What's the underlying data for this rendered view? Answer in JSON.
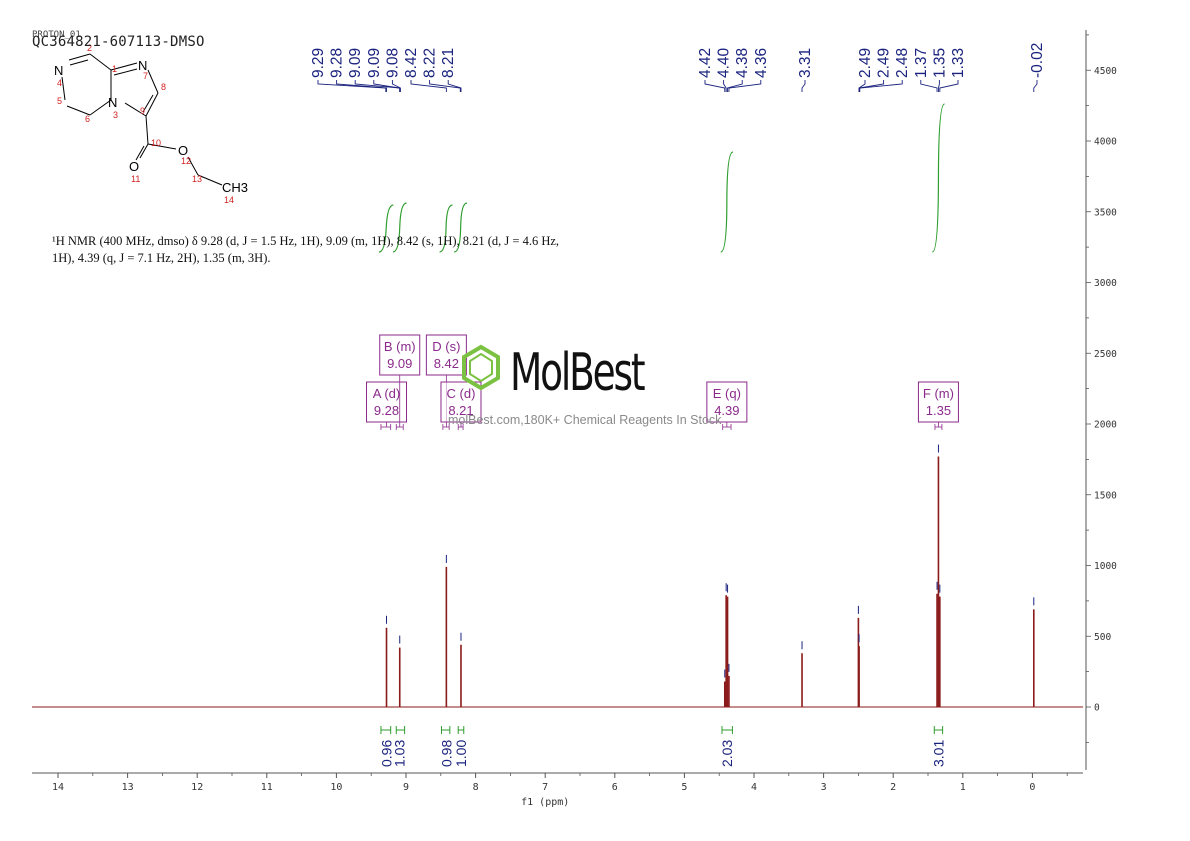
{
  "header": {
    "sample_id": "QC364821-607113-DMSO",
    "experiment": "PROTON_01"
  },
  "nmr_description": {
    "line1": "¹H NMR (400 MHz, dmso) δ 9.28 (d, J = 1.5 Hz, 1H), 9.09 (m, 1H), 8.42 (s, 1H), 8.21 (d, J = 4.6 Hz,",
    "line2": "1H), 4.39 (q, J = 7.1 Hz, 2H), 1.35 (m, 3H)."
  },
  "watermark": {
    "logo": "MolBest",
    "text": "molBest.com,180K+ Chemical Reagents In Stock"
  },
  "structure": {
    "atoms": [
      "N",
      "N",
      "N",
      "O",
      "O",
      "CH3"
    ],
    "numbers": [
      "1",
      "2",
      "3",
      "4",
      "5",
      "6",
      "7",
      "8",
      "9",
      "10",
      "11",
      "12",
      "13",
      "14"
    ]
  },
  "chart_data": {
    "type": "line",
    "xlabel": "f1 (ppm)",
    "xlim": [
      14.4,
      -0.7
    ],
    "ylim": [
      -450,
      4800
    ],
    "x_ticks": [
      14,
      13,
      12,
      11,
      10,
      9,
      8,
      7,
      6,
      5,
      4,
      3,
      2,
      1,
      0
    ],
    "y_ticks": [
      0,
      500,
      1000,
      1500,
      2000,
      2500,
      3000,
      3500,
      4000,
      4500
    ],
    "peaks": [
      {
        "ppm": 9.28,
        "height": 560
      },
      {
        "ppm": 9.09,
        "height": 420
      },
      {
        "ppm": 8.42,
        "height": 990
      },
      {
        "ppm": 8.21,
        "height": 440
      },
      {
        "ppm": 4.42,
        "height": 180
      },
      {
        "ppm": 4.4,
        "height": 790
      },
      {
        "ppm": 4.38,
        "height": 780
      },
      {
        "ppm": 4.36,
        "height": 220
      },
      {
        "ppm": 3.31,
        "height": 380
      },
      {
        "ppm": 2.5,
        "height": 630
      },
      {
        "ppm": 2.49,
        "height": 430
      },
      {
        "ppm": 1.37,
        "height": 800
      },
      {
        "ppm": 1.35,
        "height": 1770
      },
      {
        "ppm": 1.33,
        "height": 780
      },
      {
        "ppm": -0.02,
        "height": 690
      }
    ],
    "peak_labels": [
      "9.29",
      "9.28",
      "9.09",
      "9.09",
      "9.08",
      "8.42",
      "8.22",
      "8.21",
      "4.42",
      "4.40",
      "4.38",
      "4.36",
      "3.31",
      "2.49",
      "2.49",
      "2.48",
      "1.37",
      "1.35",
      "1.33",
      "-0.02"
    ],
    "peak_label_ppm": [
      9.29,
      9.28,
      9.09,
      9.09,
      9.08,
      8.42,
      8.22,
      8.21,
      4.42,
      4.4,
      4.38,
      4.36,
      3.31,
      2.49,
      2.49,
      2.48,
      1.37,
      1.35,
      1.33,
      -0.02
    ],
    "multiplets": [
      {
        "label": "A (d)",
        "value": "9.28",
        "ppm": 9.28,
        "from": 9.36,
        "to": 9.22,
        "row": 1
      },
      {
        "label": "B (m)",
        "value": "9.09",
        "ppm": 9.09,
        "from": 9.14,
        "to": 9.04,
        "row": 2
      },
      {
        "label": "D (s)",
        "value": "8.42",
        "ppm": 8.42,
        "from": 8.47,
        "to": 8.38,
        "row": 2
      },
      {
        "label": "C (d)",
        "value": "8.21",
        "ppm": 8.21,
        "from": 8.25,
        "to": 8.18,
        "row": 1
      },
      {
        "label": "E (q)",
        "value": "4.39",
        "ppm": 4.39,
        "from": 4.45,
        "to": 4.33,
        "row": 1
      },
      {
        "label": "F (m)",
        "value": "1.35",
        "ppm": 1.35,
        "from": 1.4,
        "to": 1.3,
        "row": 1
      }
    ],
    "integrals": [
      {
        "value": "0.96",
        "ppm": 9.28,
        "from": 9.36,
        "to": 9.22,
        "curve_from": 9.33,
        "curve_to": 9.24
      },
      {
        "value": "1.03",
        "ppm": 9.09,
        "from": 9.14,
        "to": 9.02,
        "curve_from": 9.13,
        "curve_to": 9.05
      },
      {
        "value": "0.98",
        "ppm": 8.42,
        "from": 8.49,
        "to": 8.37,
        "curve_from": 8.46,
        "curve_to": 8.39
      },
      {
        "value": "1.00",
        "ppm": 8.21,
        "from": 8.25,
        "to": 8.17,
        "curve_from": 8.25,
        "curve_to": 8.18
      },
      {
        "value": "2.03",
        "ppm": 4.39,
        "from": 4.46,
        "to": 4.31,
        "curve_from": 4.42,
        "curve_to": 4.36
      },
      {
        "value": "3.01",
        "ppm": 1.35,
        "from": 1.41,
        "to": 1.29,
        "curve_from": 1.38,
        "curve_to": 1.32
      }
    ],
    "colors": {
      "spectrum": "#8b1a1a",
      "peak_label": "#1a237e",
      "integral": "#2e9e2e",
      "multiplet": "#8b2a8b",
      "axis": "#555555",
      "watermark_green": "#7cc242"
    }
  }
}
